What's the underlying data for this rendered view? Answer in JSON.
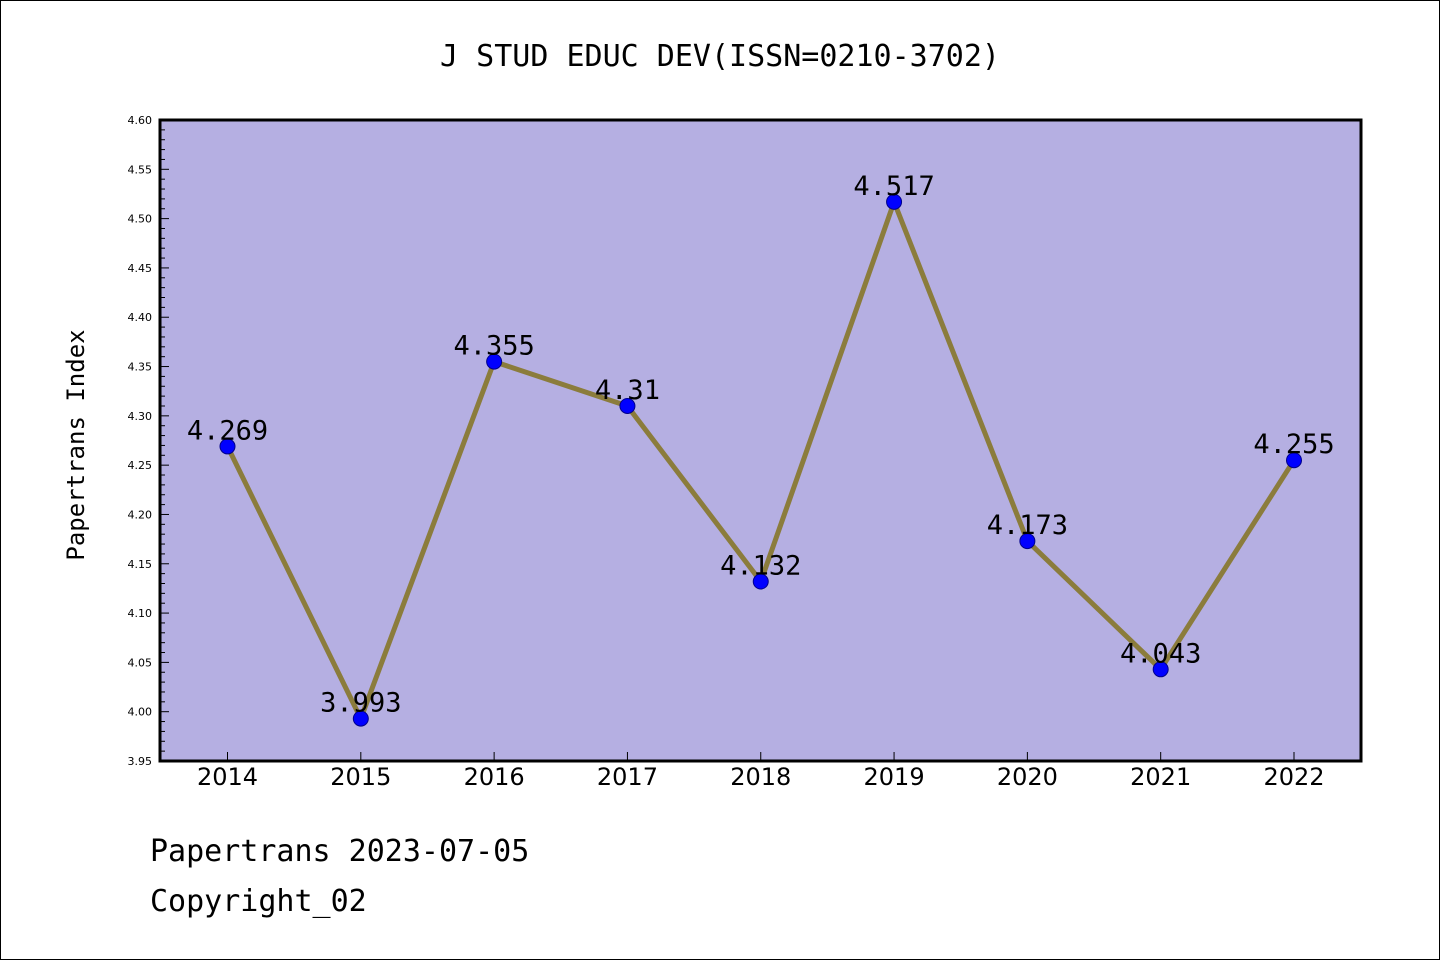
{
  "chart_data": {
    "type": "line",
    "title": "J STUD EDUC DEV(ISSN=0210-3702)",
    "xlabel": "",
    "ylabel": "Papertrans Index",
    "categories": [
      "2014",
      "2015",
      "2016",
      "2017",
      "2018",
      "2019",
      "2020",
      "2021",
      "2022"
    ],
    "values": [
      4.269,
      3.993,
      4.355,
      4.31,
      4.132,
      4.517,
      4.173,
      4.043,
      4.255
    ],
    "data_labels": [
      "4.269",
      "3.993",
      "4.355",
      "4.31",
      "4.132",
      "4.517",
      "4.173",
      "4.043",
      "4.255"
    ],
    "ylim": [
      3.95,
      4.6
    ],
    "yticks": [
      "3.95",
      "4.00",
      "4.05",
      "4.10",
      "4.15",
      "4.20",
      "4.25",
      "4.30",
      "4.35",
      "4.40",
      "4.45",
      "4.50",
      "4.55",
      "4.60"
    ],
    "grid": false,
    "legend": "none",
    "colors": {
      "plot_background": "#b5afe2",
      "line": "#8b7c3c",
      "marker": "#0000ff"
    }
  },
  "footer": {
    "line1": "Papertrans 2023-07-05",
    "line2": "Copyright_02"
  }
}
